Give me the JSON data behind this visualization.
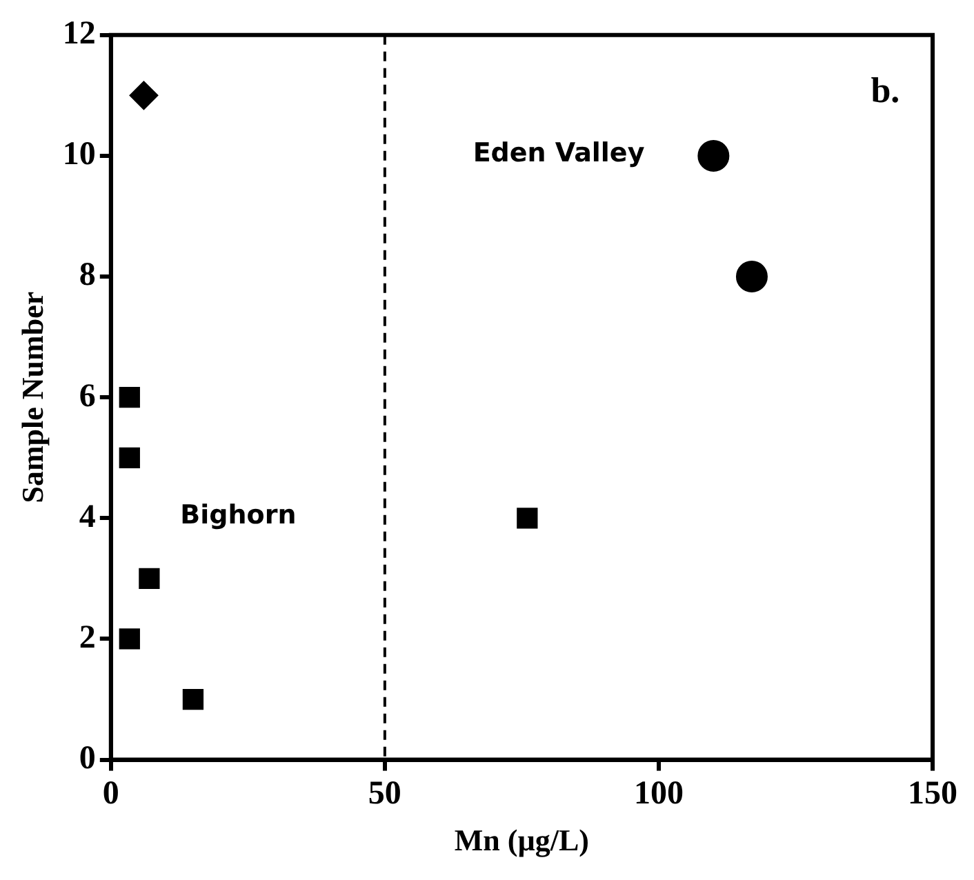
{
  "chart_data": {
    "type": "scatter",
    "xlabel": "Mn (µg/L)",
    "ylabel": "Sample Number",
    "xlim": [
      0,
      150
    ],
    "xticks": [
      0,
      50,
      100,
      150
    ],
    "ylim": [
      0,
      12
    ],
    "yticks": [
      0,
      2,
      4,
      6,
      8,
      10,
      12
    ],
    "grid": false,
    "legend": false,
    "series": [
      {
        "color": "#000000",
        "marker": "diamond",
        "x": [
          6
        ],
        "values": [
          11
        ]
      },
      {
        "color": "#000000",
        "marker": "square",
        "x": [
          3.4,
          3.4,
          7,
          3.4,
          15,
          76
        ],
        "values": [
          6,
          5,
          3,
          2,
          1,
          4
        ]
      },
      {
        "color": "#000000",
        "marker": "circle",
        "x": [
          110,
          117
        ],
        "values": [
          10,
          8
        ]
      }
    ],
    "ref_lines": [
      {
        "axis": "x",
        "value": 50,
        "line_style": "dashed",
        "color": "#000000"
      }
    ],
    "annotations": [
      "b.",
      "Bighorn",
      "Eden Valley"
    ]
  }
}
